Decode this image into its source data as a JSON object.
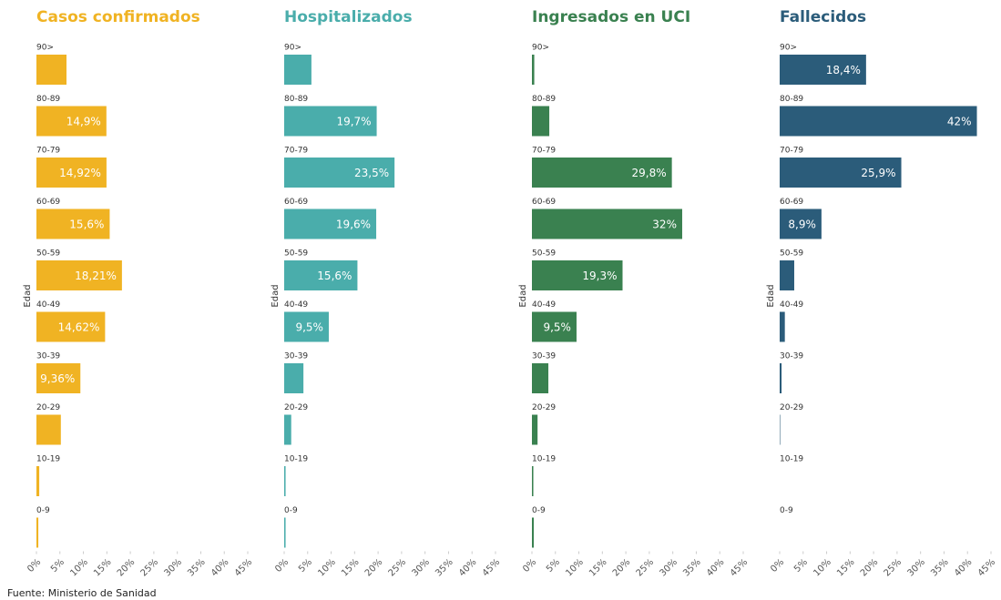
{
  "chart_data": [
    {
      "type": "bar",
      "orientation": "horizontal",
      "title": "Casos confirmados",
      "ylabel": "Edad",
      "color": "#f0b323",
      "categories": [
        "90>",
        "80-89",
        "70-79",
        "60-69",
        "50-59",
        "40-49",
        "30-39",
        "20-29",
        "10-19",
        "0-9"
      ],
      "values": [
        6.4,
        14.9,
        14.92,
        15.6,
        18.21,
        14.62,
        9.36,
        5.2,
        0.6,
        0.4
      ],
      "value_labels": [
        null,
        "14,9%",
        "14,92%",
        "15,6%",
        "18,21%",
        "14,62%",
        "9,36%",
        null,
        null,
        null
      ],
      "xlim": [
        0,
        45
      ],
      "xticks": [
        {
          "value": 0,
          "label": "0%"
        },
        {
          "value": 5,
          "label": "5%"
        },
        {
          "value": 10,
          "label": "10%"
        },
        {
          "value": 15,
          "label": "15%"
        },
        {
          "value": 20,
          "label": "20%"
        },
        {
          "value": 25,
          "label": "25%"
        },
        {
          "value": 30,
          "label": "30%"
        },
        {
          "value": 35,
          "label": "35%"
        },
        {
          "value": 40,
          "label": "40%"
        },
        {
          "value": 45,
          "label": "45%"
        }
      ]
    },
    {
      "type": "bar",
      "orientation": "horizontal",
      "title": "Hospitalizados",
      "ylabel": "Edad",
      "color": "#4aadab",
      "categories": [
        "90>",
        "80-89",
        "70-79",
        "60-69",
        "50-59",
        "40-49",
        "30-39",
        "20-29",
        "10-19",
        "0-9"
      ],
      "values": [
        5.8,
        19.7,
        23.5,
        19.6,
        15.6,
        9.5,
        4.1,
        1.5,
        0.3,
        0.3
      ],
      "value_labels": [
        null,
        "19,7%",
        "23,5%",
        "19,6%",
        "15,6%",
        "9,5%",
        null,
        null,
        null,
        null
      ],
      "xlim": [
        0,
        45
      ],
      "xticks": [
        {
          "value": 0,
          "label": "0%"
        },
        {
          "value": 5,
          "label": "5%"
        },
        {
          "value": 10,
          "label": "10%"
        },
        {
          "value": 15,
          "label": "15%"
        },
        {
          "value": 20,
          "label": "20%"
        },
        {
          "value": 25,
          "label": "25%"
        },
        {
          "value": 30,
          "label": "30%"
        },
        {
          "value": 35,
          "label": "35%"
        },
        {
          "value": 40,
          "label": "40%"
        },
        {
          "value": 45,
          "label": "45%"
        }
      ]
    },
    {
      "type": "bar",
      "orientation": "horizontal",
      "title": "Ingresados en UCI",
      "ylabel": "Edad",
      "color": "#3a8150",
      "categories": [
        "90>",
        "80-89",
        "70-79",
        "60-69",
        "50-59",
        "40-49",
        "30-39",
        "20-29",
        "10-19",
        "0-9"
      ],
      "values": [
        0.5,
        3.7,
        29.8,
        32,
        19.3,
        9.5,
        3.5,
        1.2,
        0.3,
        0.4
      ],
      "value_labels": [
        null,
        null,
        "29,8%",
        "32%",
        "19,3%",
        "9,5%",
        null,
        null,
        null,
        null
      ],
      "xlim": [
        0,
        45
      ],
      "xticks": [
        {
          "value": 0,
          "label": "0%"
        },
        {
          "value": 5,
          "label": "5%"
        },
        {
          "value": 10,
          "label": "10%"
        },
        {
          "value": 15,
          "label": "15%"
        },
        {
          "value": 20,
          "label": "20%"
        },
        {
          "value": 25,
          "label": "25%"
        },
        {
          "value": 30,
          "label": "30%"
        },
        {
          "value": 35,
          "label": "35%"
        },
        {
          "value": 40,
          "label": "40%"
        },
        {
          "value": 45,
          "label": "45%"
        }
      ]
    },
    {
      "type": "bar",
      "orientation": "horizontal",
      "title": "Fallecidos",
      "ylabel": "Edad",
      "color": "#2b5c7a",
      "categories": [
        "90>",
        "80-89",
        "70-79",
        "60-69",
        "50-59",
        "40-49",
        "30-39",
        "20-29",
        "10-19",
        "0-9"
      ],
      "values": [
        18.4,
        42,
        25.9,
        8.9,
        3.1,
        1.1,
        0.4,
        0.1,
        0,
        0
      ],
      "value_labels": [
        "18,4%",
        "42%",
        "25,9%",
        "8,9%",
        null,
        null,
        null,
        null,
        null,
        null
      ],
      "xlim": [
        0,
        45
      ],
      "xticks": [
        {
          "value": 0,
          "label": "0%"
        },
        {
          "value": 5,
          "label": "5%"
        },
        {
          "value": 10,
          "label": "10%"
        },
        {
          "value": 15,
          "label": "15%"
        },
        {
          "value": 20,
          "label": "20%"
        },
        {
          "value": 25,
          "label": "25%"
        },
        {
          "value": 30,
          "label": "30%"
        },
        {
          "value": 35,
          "label": "35%"
        },
        {
          "value": 40,
          "label": "40%"
        },
        {
          "value": 45,
          "label": "45%"
        }
      ]
    }
  ],
  "source": "Fuente: Ministerio de Sanidad"
}
